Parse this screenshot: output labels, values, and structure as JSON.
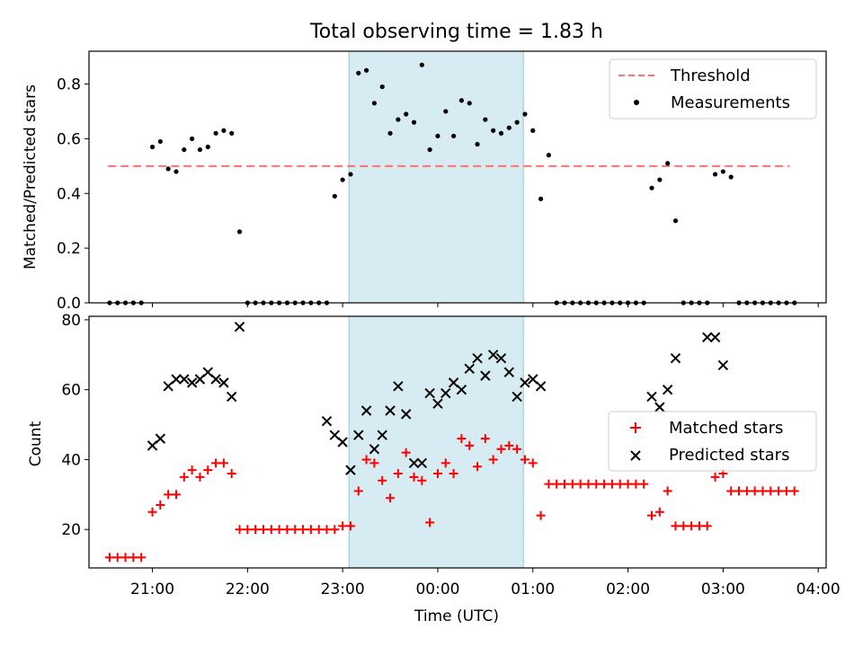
{
  "title": "Total observing time = 1.83 h",
  "chart_data": [
    {
      "type": "scatter",
      "ylabel": "Matched/Predicted stars",
      "xlabel": "",
      "xlim": [
        "20:20",
        "04:05"
      ],
      "ylim": [
        0,
        0.92
      ],
      "yticks": [
        0.0,
        0.2,
        0.4,
        0.6,
        0.8
      ],
      "ytick_labels": [
        "0.0",
        "0.2",
        "0.4",
        "0.6",
        "0.8"
      ],
      "shaded_interval": [
        "23:04",
        "00:54"
      ],
      "legend_position": "upper right",
      "threshold": {
        "name": "Threshold",
        "y": 0.5,
        "x_range": [
          "20:32",
          "03:42"
        ],
        "color": "#ff7070"
      },
      "series": [
        {
          "name": "Measurements",
          "color": "#000000",
          "marker": "dot",
          "x": [
            "20:33",
            "20:38",
            "20:43",
            "20:48",
            "20:53",
            "21:00",
            "21:05",
            "21:10",
            "21:15",
            "21:20",
            "21:25",
            "21:30",
            "21:35",
            "21:40",
            "21:45",
            "21:50",
            "21:55",
            "22:00",
            "22:05",
            "22:10",
            "22:15",
            "22:20",
            "22:25",
            "22:30",
            "22:35",
            "22:40",
            "22:45",
            "22:50",
            "22:55",
            "23:00",
            "23:05",
            "23:10",
            "23:15",
            "23:20",
            "23:25",
            "23:30",
            "23:35",
            "23:40",
            "23:45",
            "23:50",
            "23:55",
            "00:00",
            "00:05",
            "00:10",
            "00:15",
            "00:20",
            "00:25",
            "00:30",
            "00:35",
            "00:40",
            "00:45",
            "00:50",
            "00:55",
            "01:00",
            "01:05",
            "01:10",
            "01:15",
            "01:20",
            "01:25",
            "01:30",
            "01:35",
            "01:40",
            "01:45",
            "01:50",
            "01:55",
            "02:00",
            "02:05",
            "02:10",
            "02:15",
            "02:20",
            "02:25",
            "02:30",
            "02:35",
            "02:40",
            "02:45",
            "02:50",
            "02:55",
            "03:00",
            "03:05",
            "03:10",
            "03:15",
            "03:20",
            "03:25",
            "03:30",
            "03:35",
            "03:40",
            "03:45"
          ],
          "y": [
            0,
            0,
            0,
            0,
            0,
            0.57,
            0.59,
            0.49,
            0.48,
            0.56,
            0.6,
            0.56,
            0.57,
            0.62,
            0.63,
            0.62,
            0.26,
            0,
            0,
            0,
            0,
            0,
            0,
            0,
            0,
            0,
            0,
            0,
            0.39,
            0.45,
            0.47,
            0.84,
            0.85,
            0.73,
            0.79,
            0.62,
            0.67,
            0.69,
            0.66,
            0.87,
            0.56,
            0.61,
            0.7,
            0.61,
            0.74,
            0.73,
            0.58,
            0.67,
            0.63,
            0.62,
            0.64,
            0.66,
            0.69,
            0.63,
            0.38,
            0.54,
            0,
            0,
            0,
            0,
            0,
            0,
            0,
            0,
            0,
            0,
            0,
            0,
            0.42,
            0.45,
            0.51,
            0.3,
            0,
            0,
            0,
            0,
            0.47,
            0.48,
            0.46,
            0,
            0,
            0,
            0,
            0,
            0,
            0,
            0
          ]
        }
      ]
    },
    {
      "type": "scatter",
      "xlabel": "Time (UTC)",
      "ylabel": "Count",
      "xlim": [
        "20:20",
        "04:05"
      ],
      "ylim": [
        9,
        81
      ],
      "yticks": [
        20,
        40,
        60,
        80
      ],
      "ytick_labels": [
        "20",
        "40",
        "60",
        "80"
      ],
      "xticks": [
        "21:00",
        "22:00",
        "23:00",
        "00:00",
        "01:00",
        "02:00",
        "03:00",
        "04:00"
      ],
      "shaded_interval": [
        "23:04",
        "00:54"
      ],
      "legend_position": "center right",
      "series": [
        {
          "name": "Matched stars",
          "color": "#ff0000",
          "marker": "plus",
          "x": [
            "20:33",
            "20:38",
            "20:43",
            "20:48",
            "20:53",
            "21:00",
            "21:05",
            "21:10",
            "21:15",
            "21:20",
            "21:25",
            "21:30",
            "21:35",
            "21:40",
            "21:45",
            "21:50",
            "21:55",
            "22:00",
            "22:05",
            "22:10",
            "22:15",
            "22:20",
            "22:25",
            "22:30",
            "22:35",
            "22:40",
            "22:45",
            "22:50",
            "22:55",
            "23:00",
            "23:05",
            "23:10",
            "23:15",
            "23:20",
            "23:25",
            "23:30",
            "23:35",
            "23:40",
            "23:45",
            "23:50",
            "23:55",
            "00:00",
            "00:05",
            "00:10",
            "00:15",
            "00:20",
            "00:25",
            "00:30",
            "00:35",
            "00:40",
            "00:45",
            "00:50",
            "00:55",
            "01:00",
            "01:05",
            "01:10",
            "01:15",
            "01:20",
            "01:25",
            "01:30",
            "01:35",
            "01:40",
            "01:45",
            "01:50",
            "01:55",
            "02:00",
            "02:05",
            "02:10",
            "02:15",
            "02:20",
            "02:25",
            "02:30",
            "02:35",
            "02:40",
            "02:45",
            "02:50",
            "02:55",
            "03:00",
            "03:05",
            "03:10",
            "03:15",
            "03:20",
            "03:25",
            "03:30",
            "03:35",
            "03:40",
            "03:45"
          ],
          "y": [
            12,
            12,
            12,
            12,
            12,
            25,
            27,
            30,
            30,
            35,
            37,
            35,
            37,
            39,
            39,
            36,
            20,
            20,
            20,
            20,
            20,
            20,
            20,
            20,
            20,
            20,
            20,
            20,
            20,
            21,
            21,
            31,
            40,
            39,
            34,
            29,
            36,
            42,
            35,
            34,
            22,
            36,
            39,
            36,
            46,
            44,
            38,
            46,
            40,
            43,
            44,
            43,
            40,
            39,
            24,
            33,
            33,
            33,
            33,
            33,
            33,
            33,
            33,
            33,
            33,
            33,
            33,
            33,
            24,
            25,
            31,
            21,
            21,
            21,
            21,
            21,
            35,
            36,
            31,
            31,
            31,
            31,
            31,
            31,
            31,
            31,
            31
          ]
        },
        {
          "name": "Predicted stars",
          "color": "#000000",
          "marker": "x",
          "x": [
            "21:00",
            "21:05",
            "21:10",
            "21:15",
            "21:20",
            "21:25",
            "21:30",
            "21:35",
            "21:40",
            "21:45",
            "21:50",
            "21:55",
            "22:50",
            "22:55",
            "23:00",
            "23:05",
            "23:10",
            "23:15",
            "23:20",
            "23:25",
            "23:30",
            "23:35",
            "23:40",
            "23:45",
            "23:50",
            "23:55",
            "00:00",
            "00:05",
            "00:10",
            "00:15",
            "00:20",
            "00:25",
            "00:30",
            "00:35",
            "00:40",
            "00:45",
            "00:50",
            "00:55",
            "01:00",
            "01:05",
            "02:15",
            "02:20",
            "02:25",
            "02:30",
            "02:50",
            "02:55",
            "03:00"
          ],
          "y": [
            44,
            46,
            61,
            63,
            63,
            62,
            63,
            65,
            63,
            62,
            58,
            78,
            51,
            47,
            45,
            37,
            47,
            54,
            43,
            47,
            54,
            61,
            53,
            39,
            39,
            59,
            56,
            59,
            62,
            60,
            66,
            69,
            64,
            70,
            69,
            65,
            58,
            62,
            63,
            61,
            58,
            55,
            60,
            69,
            75,
            75,
            67
          ]
        }
      ]
    }
  ]
}
